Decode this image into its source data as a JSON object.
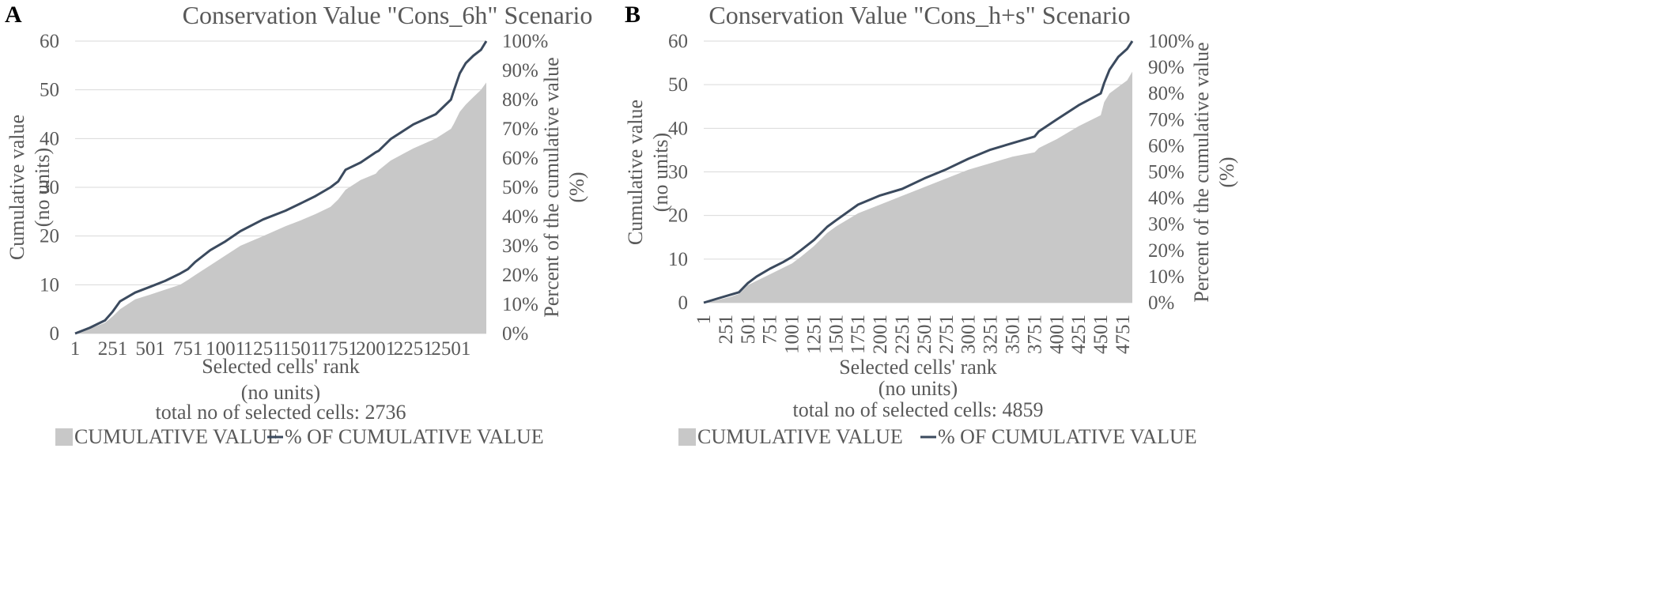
{
  "colors": {
    "area": "#c8c8c8",
    "line": "#3b4a5e",
    "grid": "#d9d9d9",
    "text": "#595959"
  },
  "chart_data": [
    {
      "type": "area",
      "panel_letter": "A",
      "title": "Conservation Value \"Cons_6h\" Scenario",
      "ylabel": [
        "Cumulative value",
        "(no units)"
      ],
      "y2label": [
        "Percent of the cumulative value",
        "(%)"
      ],
      "xlabel": "Selected cells' rank",
      "xlabel_units": "(no units)",
      "footer": "total no of selected cells: 2736",
      "total_cells": 2736,
      "ylim": [
        0,
        60
      ],
      "y_ticks": [
        0,
        10,
        20,
        30,
        40,
        50,
        60
      ],
      "y_tick_labels": [
        "0",
        "10",
        "20",
        "30",
        "40",
        "50",
        "60"
      ],
      "y2lim": [
        0,
        100
      ],
      "y2_ticks": [
        0,
        10,
        20,
        30,
        40,
        50,
        60,
        70,
        80,
        90,
        100
      ],
      "y2_tick_labels": [
        "0%",
        "10%",
        "20%",
        "30%",
        "40%",
        "50%",
        "60%",
        "70%",
        "80%",
        "90%",
        "100%"
      ],
      "x_ticks": [
        1,
        251,
        501,
        751,
        1001,
        1251,
        1501,
        1751,
        2001,
        2251,
        2501
      ],
      "x_tick_labels": [
        "1",
        "251",
        "501",
        "751",
        "1001",
        "1251",
        "1501",
        "1751",
        "2001",
        "2251",
        "2501"
      ],
      "x_tick_rotation": 0,
      "xlim": [
        1,
        2736
      ],
      "grid": true,
      "series": [
        {
          "name": "CUMULATIVE VALUE",
          "kind": "area",
          "axis": "left",
          "x": [
            1,
            100,
            200,
            251,
            300,
            400,
            501,
            600,
            700,
            751,
            800,
            900,
            1001,
            1100,
            1251,
            1400,
            1501,
            1600,
            1700,
            1751,
            1800,
            1900,
            2001,
            2020,
            2100,
            2251,
            2400,
            2501,
            2520,
            2560,
            2600,
            2650,
            2700,
            2736
          ],
          "values": [
            0,
            1,
            2.2,
            3.5,
            5,
            7,
            8,
            9,
            10,
            11,
            12,
            14,
            16,
            18,
            20,
            22,
            23.2,
            24.5,
            26,
            27.5,
            29.5,
            31.5,
            32.8,
            33.5,
            35.5,
            38,
            40,
            42,
            43,
            45.5,
            47,
            48.5,
            50,
            51.5
          ]
        },
        {
          "name": "% OF CUMULATIVE VALUE",
          "kind": "line",
          "axis": "right",
          "x": [
            1,
            100,
            200,
            251,
            300,
            400,
            501,
            600,
            700,
            751,
            800,
            900,
            1001,
            1100,
            1251,
            1400,
            1501,
            1600,
            1700,
            1751,
            1800,
            1900,
            2001,
            2020,
            2100,
            2251,
            2400,
            2501,
            2520,
            2560,
            2600,
            2650,
            2700,
            2736
          ],
          "values": [
            0,
            2,
            4.5,
            7.5,
            11,
            14,
            16,
            18,
            20.5,
            22,
            24.5,
            28.5,
            31.5,
            35,
            39,
            42,
            44.5,
            47,
            50,
            52,
            56,
            58.5,
            62,
            62.5,
            66.5,
            71.5,
            75,
            80,
            83,
            89,
            92.5,
            95,
            97,
            100
          ]
        }
      ],
      "legend": [
        "CUMULATIVE VALUE",
        "% OF CUMULATIVE VALUE"
      ],
      "legend_position": "bottom"
    },
    {
      "type": "area",
      "panel_letter": "B",
      "title": "Conservation Value \"Cons_h+s\" Scenario",
      "ylabel": [
        "Cumulative value",
        "(no units)"
      ],
      "y2label": [
        "Percent of the cumulative value",
        "(%)"
      ],
      "xlabel": "Selected cells' rank",
      "xlabel_units": "(no units)",
      "footer": "total no of selected cells: 4859",
      "total_cells": 4859,
      "ylim": [
        0,
        60
      ],
      "y_ticks": [
        0,
        10,
        20,
        30,
        40,
        50,
        60
      ],
      "y_tick_labels": [
        "0",
        "10",
        "20",
        "30",
        "40",
        "50",
        "60"
      ],
      "y2lim": [
        0,
        100
      ],
      "y2_ticks": [
        0,
        10,
        20,
        30,
        40,
        50,
        60,
        70,
        80,
        90,
        100
      ],
      "y2_tick_labels": [
        "0%",
        "10%",
        "20%",
        "30%",
        "40%",
        "50%",
        "60%",
        "70%",
        "80%",
        "90%",
        "100%"
      ],
      "x_ticks": [
        1,
        251,
        501,
        751,
        1001,
        1251,
        1501,
        1751,
        2001,
        2251,
        2501,
        2751,
        3001,
        3251,
        3501,
        3751,
        4001,
        4251,
        4501,
        4751
      ],
      "x_tick_labels": [
        "1",
        "251",
        "501",
        "751",
        "1001",
        "1251",
        "1501",
        "1751",
        "2001",
        "2251",
        "2501",
        "2751",
        "3001",
        "3251",
        "3501",
        "3751",
        "4001",
        "4251",
        "4501",
        "4751"
      ],
      "x_tick_rotation": -90,
      "xlim": [
        1,
        4859
      ],
      "grid": true,
      "series": [
        {
          "name": "CUMULATIVE VALUE",
          "kind": "area",
          "axis": "left",
          "x": [
            1,
            150,
            300,
            400,
            501,
            600,
            751,
            900,
            1001,
            1100,
            1251,
            1400,
            1501,
            1751,
            2001,
            2251,
            2501,
            2751,
            3001,
            3251,
            3501,
            3751,
            3800,
            4001,
            4251,
            4501,
            4540,
            4600,
            4700,
            4800,
            4859
          ],
          "values": [
            0,
            0.6,
            1.3,
            2,
            4,
            5,
            6.5,
            8,
            9,
            10.5,
            13,
            16,
            17.5,
            20.5,
            22.5,
            24.5,
            26.5,
            28.5,
            30.5,
            32,
            33.5,
            34.5,
            35.5,
            37.5,
            40.5,
            43,
            46,
            48,
            49.5,
            51,
            53
          ]
        },
        {
          "name": "% OF CUMULATIVE VALUE",
          "kind": "line",
          "axis": "right",
          "x": [
            1,
            150,
            300,
            400,
            501,
            600,
            751,
            900,
            1001,
            1100,
            1251,
            1400,
            1501,
            1751,
            2001,
            2251,
            2501,
            2751,
            3001,
            3251,
            3501,
            3751,
            3800,
            4001,
            4251,
            4501,
            4540,
            4600,
            4700,
            4800,
            4859
          ],
          "values": [
            0,
            1.5,
            3,
            4,
            7.5,
            10,
            13,
            15.5,
            17.5,
            20,
            24,
            29,
            31.5,
            37.5,
            41,
            43.5,
            47.5,
            51,
            55,
            58.5,
            61,
            63.5,
            65.5,
            70,
            75.5,
            80,
            84,
            89,
            94,
            97,
            100
          ]
        }
      ],
      "legend": [
        "CUMULATIVE VALUE",
        "% OF CUMULATIVE VALUE"
      ],
      "legend_position": "bottom"
    }
  ]
}
